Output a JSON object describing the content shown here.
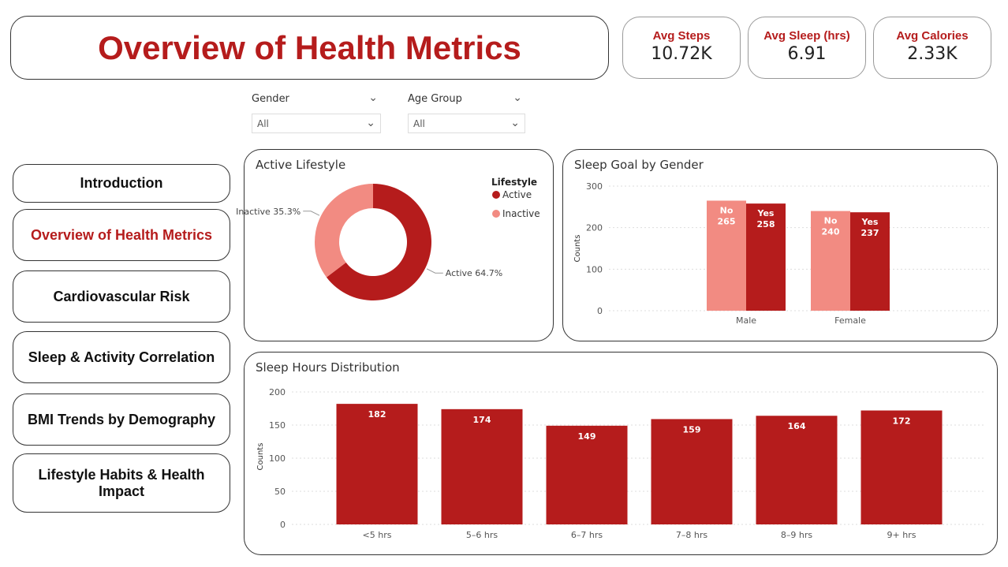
{
  "title": "Overview of Health Metrics",
  "kpis": [
    {
      "label": "Avg Steps",
      "value": "10.72K"
    },
    {
      "label": "Avg Sleep (hrs)",
      "value": "6.91"
    },
    {
      "label": "Avg Calories",
      "value": "2.33K"
    }
  ],
  "filters": [
    {
      "label": "Gender",
      "value": "All"
    },
    {
      "label": "Age Group",
      "value": "All"
    }
  ],
  "nav": [
    "Introduction",
    "Overview of Health Metrics",
    "Cardiovascular Risk",
    "Sleep & Activity Correlation",
    "BMI Trends by Demography",
    "Lifestyle Habits & Health Impact"
  ],
  "colors": {
    "accent": "#b51c1c",
    "light": "#f28b82"
  },
  "chart_data": [
    {
      "type": "pie",
      "title": "Active Lifestyle",
      "legend_title": "Lifestyle",
      "legend_position": "top-right",
      "slices": [
        {
          "label": "Active",
          "value": 64.7,
          "display": "Active 64.7%",
          "color": "#b51c1c"
        },
        {
          "label": "Inactive",
          "value": 35.3,
          "display": "Inactive 35.3%",
          "color": "#f28b82"
        }
      ]
    },
    {
      "type": "bar",
      "title": "Sleep Goal by Gender",
      "ylabel": "Counts",
      "categories": [
        "Male",
        "Female"
      ],
      "ylim": [
        0,
        300
      ],
      "yticks": [
        0,
        100,
        200,
        300
      ],
      "series": [
        {
          "name": "No",
          "values": [
            265,
            240
          ],
          "color": "#f28b82"
        },
        {
          "name": "Yes",
          "values": [
            258,
            237
          ],
          "color": "#b51c1c"
        }
      ]
    },
    {
      "type": "bar",
      "title": "Sleep Hours Distribution",
      "ylabel": "Counts",
      "categories": [
        "<5 hrs",
        "5–6 hrs",
        "6–7 hrs",
        "7–8 hrs",
        "8–9 hrs",
        "9+ hrs"
      ],
      "values": [
        182,
        174,
        149,
        159,
        164,
        172
      ],
      "ylim": [
        0,
        200
      ],
      "yticks": [
        0,
        50,
        100,
        150,
        200
      ],
      "color": "#b51c1c"
    }
  ]
}
